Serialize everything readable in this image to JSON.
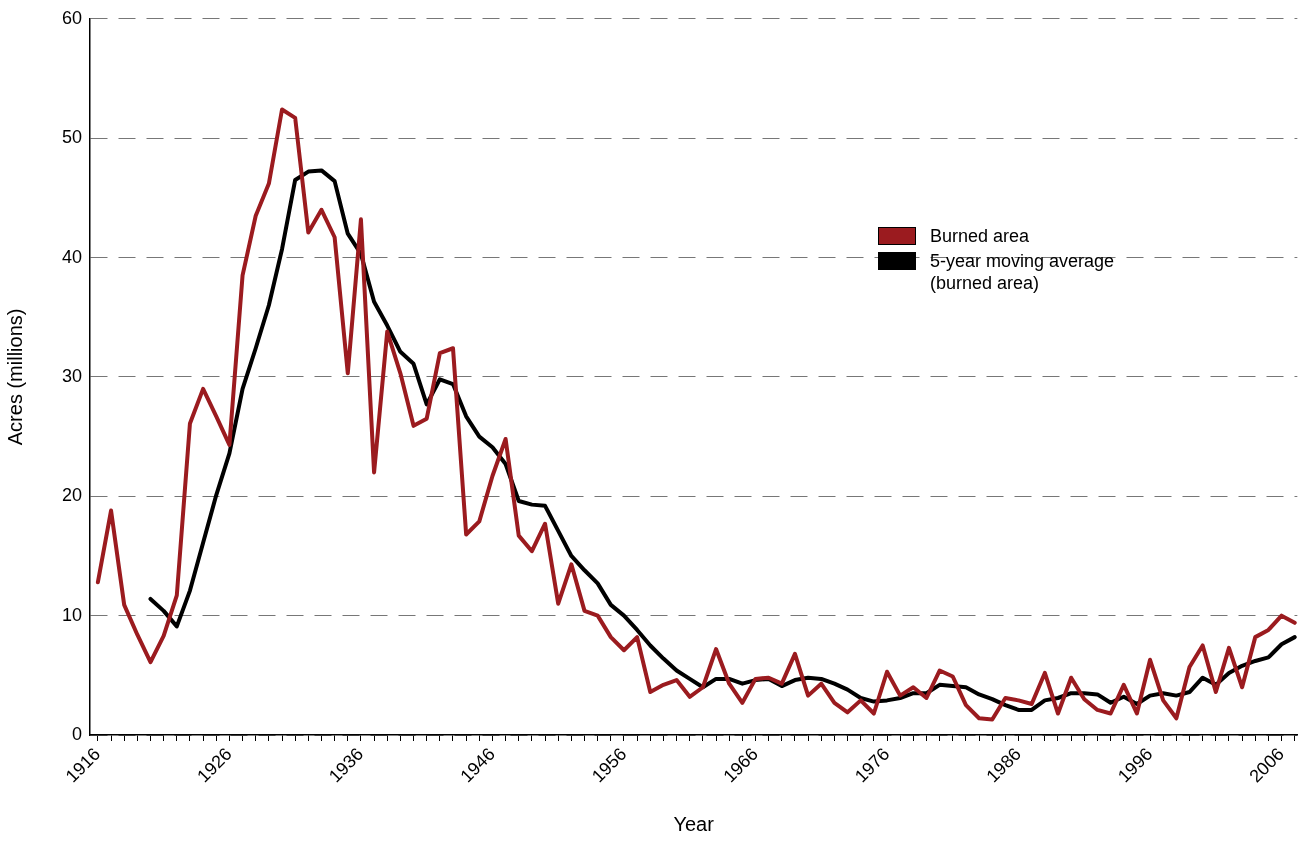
{
  "chart_data": {
    "type": "line",
    "xlabel": "Year",
    "ylabel": "Acres (millions)",
    "x": [
      1916,
      1917,
      1918,
      1919,
      1920,
      1921,
      1922,
      1923,
      1924,
      1925,
      1926,
      1927,
      1928,
      1929,
      1930,
      1931,
      1932,
      1933,
      1934,
      1935,
      1936,
      1937,
      1938,
      1939,
      1940,
      1941,
      1942,
      1943,
      1944,
      1945,
      1946,
      1947,
      1948,
      1949,
      1950,
      1951,
      1952,
      1953,
      1954,
      1955,
      1956,
      1957,
      1958,
      1959,
      1960,
      1961,
      1962,
      1963,
      1964,
      1965,
      1966,
      1967,
      1968,
      1969,
      1970,
      1971,
      1972,
      1973,
      1974,
      1975,
      1976,
      1977,
      1978,
      1979,
      1980,
      1981,
      1982,
      1983,
      1984,
      1985,
      1986,
      1987,
      1988,
      1989,
      1990,
      1991,
      1992,
      1993,
      1994,
      1995,
      1996,
      1997,
      1998,
      1999,
      2000,
      2001,
      2002,
      2003,
      2004,
      2005,
      2006,
      2007
    ],
    "series": [
      {
        "name": "Burned area",
        "color": "#9b1b1f",
        "values": [
          12.8,
          18.8,
          10.9,
          8.4,
          6.1,
          8.3,
          11.7,
          26.1,
          29.0,
          26.7,
          24.3,
          38.5,
          43.5,
          46.2,
          52.4,
          51.7,
          42.1,
          44.0,
          41.7,
          30.3,
          43.2,
          22.0,
          33.8,
          30.3,
          25.9,
          26.5,
          32.0,
          32.4,
          16.8,
          17.9,
          21.7,
          24.8,
          16.7,
          15.4,
          17.7,
          11.0,
          14.3,
          10.4,
          10.0,
          8.2,
          7.1,
          8.2,
          3.6,
          4.2,
          4.6,
          3.2,
          4.0,
          7.2,
          4.3,
          2.7,
          4.7,
          4.8,
          4.3,
          6.8,
          3.3,
          4.3,
          2.7,
          1.9,
          2.9,
          1.8,
          5.3,
          3.3,
          4.0,
          3.1,
          5.4,
          4.9,
          2.5,
          1.4,
          1.3,
          3.1,
          2.9,
          2.6,
          5.2,
          1.8,
          4.8,
          3.0,
          2.1,
          1.8,
          4.2,
          1.8,
          6.3,
          2.9,
          1.4,
          5.7,
          7.5,
          3.6,
          7.3,
          4.0,
          8.2,
          8.8,
          10.0,
          9.4
        ]
      },
      {
        "name": "5-year moving average (burned area)",
        "color": "#000000",
        "values": [
          null,
          null,
          null,
          null,
          11.4,
          10.4,
          9.1,
          12.1,
          16.1,
          20.1,
          23.6,
          29.0,
          32.4,
          36.0,
          40.7,
          46.5,
          47.2,
          47.3,
          46.4,
          42.0,
          40.3,
          36.3,
          34.3,
          32.1,
          31.1,
          27.7,
          29.8,
          29.4,
          26.7,
          25.0,
          24.1,
          22.7,
          19.6,
          19.3,
          19.2,
          17.1,
          15.0,
          13.8,
          12.7,
          10.9,
          10.0,
          8.8,
          7.5,
          6.4,
          5.4,
          4.7,
          4.0,
          4.7,
          4.7,
          4.3,
          4.6,
          4.7,
          4.1,
          4.6,
          4.8,
          4.7,
          4.3,
          3.8,
          3.1,
          2.8,
          2.9,
          3.1,
          3.5,
          3.5,
          4.2,
          4.1,
          4.0,
          3.4,
          3.0,
          2.5,
          2.1,
          2.1,
          2.9,
          3.1,
          3.5,
          3.5,
          3.4,
          2.7,
          3.2,
          2.6,
          3.3,
          3.5,
          3.3,
          3.6,
          4.8,
          4.2,
          5.2,
          5.8,
          6.2,
          6.5,
          7.6,
          8.2
        ]
      }
    ],
    "xlim": [
      1915.4,
      2007.2
    ],
    "xticks": [
      1916,
      {
        "value": 1917,
        "label": null
      },
      {
        "value": 1918,
        "label": null
      },
      {
        "value": 1919,
        "label": null
      },
      {
        "value": 1920,
        "label": null
      },
      {
        "value": 1921,
        "label": null
      },
      {
        "value": 1922,
        "label": null
      },
      {
        "value": 1923,
        "label": null
      },
      {
        "value": 1924,
        "label": null
      },
      {
        "value": 1925,
        "label": null
      },
      1926,
      {
        "value": 1927,
        "label": null
      },
      {
        "value": 1928,
        "label": null
      },
      {
        "value": 1929,
        "label": null
      },
      {
        "value": 1930,
        "label": null
      },
      {
        "value": 1931,
        "label": null
      },
      {
        "value": 1932,
        "label": null
      },
      {
        "value": 1933,
        "label": null
      },
      {
        "value": 1934,
        "label": null
      },
      {
        "value": 1935,
        "label": null
      },
      1936,
      {
        "value": 1937,
        "label": null
      },
      {
        "value": 1938,
        "label": null
      },
      {
        "value": 1939,
        "label": null
      },
      {
        "value": 1940,
        "label": null
      },
      {
        "value": 1941,
        "label": null
      },
      {
        "value": 1942,
        "label": null
      },
      {
        "value": 1943,
        "label": null
      },
      {
        "value": 1944,
        "label": null
      },
      {
        "value": 1945,
        "label": null
      },
      1946,
      {
        "value": 1947,
        "label": null
      },
      {
        "value": 1948,
        "label": null
      },
      {
        "value": 1949,
        "label": null
      },
      {
        "value": 1950,
        "label": null
      },
      {
        "value": 1951,
        "label": null
      },
      {
        "value": 1952,
        "label": null
      },
      {
        "value": 1953,
        "label": null
      },
      {
        "value": 1954,
        "label": null
      },
      {
        "value": 1955,
        "label": null
      },
      1956,
      {
        "value": 1957,
        "label": null
      },
      {
        "value": 1958,
        "label": null
      },
      {
        "value": 1959,
        "label": null
      },
      {
        "value": 1960,
        "label": null
      },
      {
        "value": 1961,
        "label": null
      },
      {
        "value": 1962,
        "label": null
      },
      {
        "value": 1963,
        "label": null
      },
      {
        "value": 1964,
        "label": null
      },
      {
        "value": 1965,
        "label": null
      },
      1966,
      {
        "value": 1967,
        "label": null
      },
      {
        "value": 1968,
        "label": null
      },
      {
        "value": 1969,
        "label": null
      },
      {
        "value": 1970,
        "label": null
      },
      {
        "value": 1971,
        "label": null
      },
      {
        "value": 1972,
        "label": null
      },
      {
        "value": 1973,
        "label": null
      },
      {
        "value": 1974,
        "label": null
      },
      {
        "value": 1975,
        "label": null
      },
      1976,
      {
        "value": 1977,
        "label": null
      },
      {
        "value": 1978,
        "label": null
      },
      {
        "value": 1979,
        "label": null
      },
      {
        "value": 1980,
        "label": null
      },
      {
        "value": 1981,
        "label": null
      },
      {
        "value": 1982,
        "label": null
      },
      {
        "value": 1983,
        "label": null
      },
      {
        "value": 1984,
        "label": null
      },
      {
        "value": 1985,
        "label": null
      },
      1986,
      {
        "value": 1987,
        "label": null
      },
      {
        "value": 1988,
        "label": null
      },
      {
        "value": 1989,
        "label": null
      },
      {
        "value": 1990,
        "label": null
      },
      {
        "value": 1991,
        "label": null
      },
      {
        "value": 1992,
        "label": null
      },
      {
        "value": 1993,
        "label": null
      },
      {
        "value": 1994,
        "label": null
      },
      {
        "value": 1995,
        "label": null
      },
      1996,
      {
        "value": 1997,
        "label": null
      },
      {
        "value": 1998,
        "label": null
      },
      {
        "value": 1999,
        "label": null
      },
      {
        "value": 2000,
        "label": null
      },
      {
        "value": 2001,
        "label": null
      },
      {
        "value": 2002,
        "label": null
      },
      {
        "value": 2003,
        "label": null
      },
      {
        "value": 2004,
        "label": null
      },
      {
        "value": 2005,
        "label": null
      },
      2006,
      {
        "value": 2007,
        "label": null
      }
    ],
    "ylim": [
      0,
      60
    ],
    "yticks": [
      0,
      10,
      20,
      30,
      40,
      50,
      60
    ],
    "grid": "y",
    "legend": "right",
    "marker": "none",
    "line_style": "solid"
  }
}
